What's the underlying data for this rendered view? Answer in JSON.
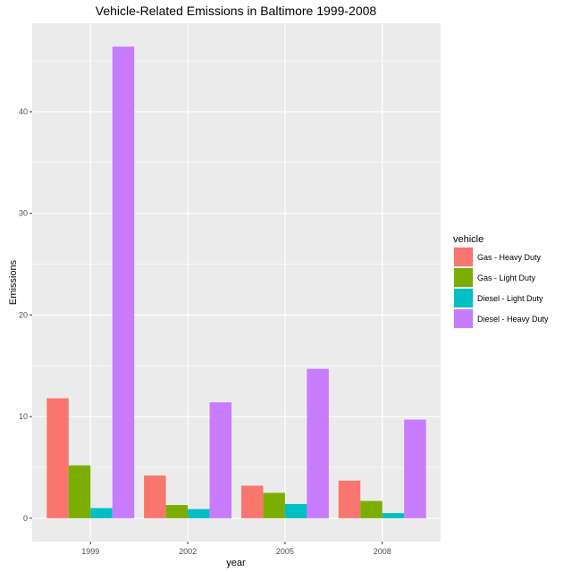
{
  "chart_data": {
    "type": "bar",
    "title": "Vehicle-Related Emissions in Baltimore 1999-2008",
    "xlabel": "year",
    "ylabel": "Emissions",
    "categories": [
      "1999",
      "2002",
      "2005",
      "2008"
    ],
    "y_ticks": [
      0,
      10,
      20,
      30,
      40
    ],
    "ylim": [
      -2.3,
      48.7
    ],
    "grid": true,
    "legend": {
      "title": "vehicle",
      "position": "right"
    },
    "series": [
      {
        "name": "Gas - Heavy Duty",
        "color": "#F8766D",
        "values": [
          11.8,
          4.2,
          3.2,
          3.7
        ]
      },
      {
        "name": "Gas - Light Duty",
        "color": "#7CAE00",
        "values": [
          5.2,
          1.3,
          2.5,
          1.7
        ]
      },
      {
        "name": "Diesel - Light Duty",
        "color": "#00BFC4",
        "values": [
          1.0,
          0.9,
          1.4,
          0.5
        ]
      },
      {
        "name": "Diesel - Heavy Duty",
        "color": "#C77CFF",
        "values": [
          46.4,
          11.4,
          14.7,
          9.7
        ]
      }
    ]
  }
}
